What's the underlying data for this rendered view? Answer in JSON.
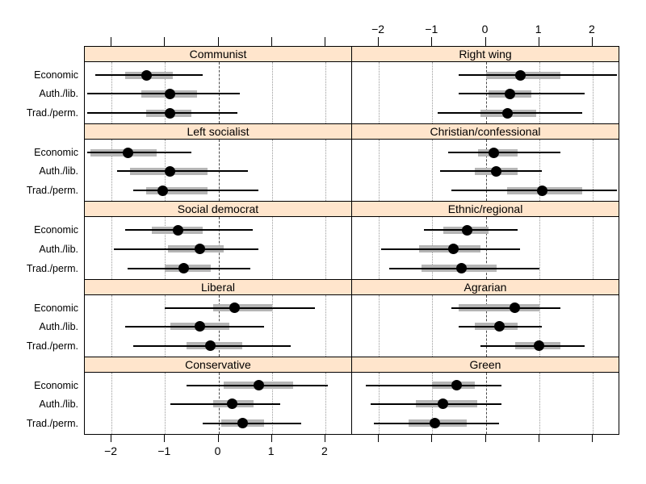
{
  "figure": {
    "background": "#ffffff",
    "strip_fill": "#ffe5cc",
    "inner_bar_color": "#b5b5b5",
    "dot_color": "#000000",
    "zero_line_style": "dashed",
    "gridline_style": "dotted"
  },
  "chart_data": {
    "type": "dotplot",
    "description_visible_elements": "Ten panels of point estimates with thick inner intervals and thin outer intervals, three ideological dimensions per party family, dashed reference line at 0, dotted gridlines at integers",
    "row_labels": [
      "Economic",
      "Auth./lib.",
      "Trad./perm."
    ],
    "x_axis": {
      "range": [
        -2.5,
        2.5
      ],
      "tick_values": [
        -2,
        -1,
        0,
        1,
        2
      ],
      "tick_labels": [
        "−2",
        "−1",
        "0",
        "1",
        "2"
      ],
      "top_labels_shown_over": "right column",
      "bottom_labels_shown_under": "left column",
      "grid": true,
      "reference_line_at": 0
    },
    "panel_layout": [
      [
        "Communist",
        "Right wing"
      ],
      [
        "Left socialist",
        "Christian/confessional"
      ],
      [
        "Social democrat",
        "Ethnic/regional"
      ],
      [
        "Liberal",
        "Agrarian"
      ],
      [
        "Conservative",
        "Green"
      ]
    ],
    "panels": [
      {
        "title": "Communist",
        "col": 0,
        "row": 0,
        "points": [
          {
            "label": "Economic",
            "estimate": -1.35,
            "inner": [
              -1.75,
              -0.85
            ],
            "outer": [
              -2.3,
              -0.3
            ]
          },
          {
            "label": "Auth./lib.",
            "estimate": -0.9,
            "inner": [
              -1.45,
              -0.4
            ],
            "outer": [
              -2.45,
              0.4
            ]
          },
          {
            "label": "Trad./perm.",
            "estimate": -0.9,
            "inner": [
              -1.35,
              -0.5
            ],
            "outer": [
              -2.45,
              0.35
            ]
          }
        ]
      },
      {
        "title": "Right wing",
        "col": 1,
        "row": 0,
        "points": [
          {
            "label": "Economic",
            "estimate": 0.65,
            "inner": [
              0.0,
              1.4
            ],
            "outer": [
              -0.5,
              2.45
            ]
          },
          {
            "label": "Auth./lib.",
            "estimate": 0.45,
            "inner": [
              0.05,
              0.85
            ],
            "outer": [
              -0.5,
              1.85
            ]
          },
          {
            "label": "Trad./perm.",
            "estimate": 0.4,
            "inner": [
              -0.1,
              0.95
            ],
            "outer": [
              -0.9,
              1.8
            ]
          }
        ]
      },
      {
        "title": "Left socialist",
        "col": 0,
        "row": 1,
        "points": [
          {
            "label": "Economic",
            "estimate": -1.7,
            "inner": [
              -2.4,
              -1.15
            ],
            "outer": [
              -2.45,
              -0.5
            ]
          },
          {
            "label": "Auth./lib.",
            "estimate": -0.9,
            "inner": [
              -1.65,
              -0.2
            ],
            "outer": [
              -1.9,
              0.55
            ]
          },
          {
            "label": "Trad./perm.",
            "estimate": -1.05,
            "inner": [
              -1.35,
              -0.2
            ],
            "outer": [
              -1.6,
              0.75
            ]
          }
        ]
      },
      {
        "title": "Christian/confessional",
        "col": 1,
        "row": 1,
        "points": [
          {
            "label": "Economic",
            "estimate": 0.15,
            "inner": [
              -0.15,
              0.6
            ],
            "outer": [
              -0.7,
              1.4
            ]
          },
          {
            "label": "Auth./lib.",
            "estimate": 0.2,
            "inner": [
              -0.2,
              0.6
            ],
            "outer": [
              -0.85,
              1.05
            ]
          },
          {
            "label": "Trad./perm.",
            "estimate": 1.05,
            "inner": [
              0.4,
              1.8
            ],
            "outer": [
              -0.65,
              2.45
            ]
          }
        ]
      },
      {
        "title": "Social democrat",
        "col": 0,
        "row": 2,
        "points": [
          {
            "label": "Economic",
            "estimate": -0.75,
            "inner": [
              -1.25,
              -0.3
            ],
            "outer": [
              -1.75,
              0.65
            ]
          },
          {
            "label": "Auth./lib.",
            "estimate": -0.35,
            "inner": [
              -0.95,
              0.1
            ],
            "outer": [
              -1.95,
              0.75
            ]
          },
          {
            "label": "Trad./perm.",
            "estimate": -0.65,
            "inner": [
              -1.0,
              -0.15
            ],
            "outer": [
              -1.7,
              0.6
            ]
          }
        ]
      },
      {
        "title": "Ethnic/regional",
        "col": 1,
        "row": 2,
        "points": [
          {
            "label": "Economic",
            "estimate": -0.35,
            "inner": [
              -0.8,
              0.05
            ],
            "outer": [
              -1.15,
              0.6
            ]
          },
          {
            "label": "Auth./lib.",
            "estimate": -0.6,
            "inner": [
              -1.25,
              -0.1
            ],
            "outer": [
              -1.95,
              0.65
            ]
          },
          {
            "label": "Trad./perm.",
            "estimate": -0.45,
            "inner": [
              -1.2,
              0.2
            ],
            "outer": [
              -1.8,
              1.0
            ]
          }
        ]
      },
      {
        "title": "Liberal",
        "col": 0,
        "row": 3,
        "points": [
          {
            "label": "Economic",
            "estimate": 0.3,
            "inner": [
              -0.1,
              1.0
            ],
            "outer": [
              -1.0,
              1.8
            ]
          },
          {
            "label": "Auth./lib.",
            "estimate": -0.35,
            "inner": [
              -0.9,
              0.2
            ],
            "outer": [
              -1.75,
              0.85
            ]
          },
          {
            "label": "Trad./perm.",
            "estimate": -0.15,
            "inner": [
              -0.6,
              0.45
            ],
            "outer": [
              -1.6,
              1.35
            ]
          }
        ]
      },
      {
        "title": "Agrarian",
        "col": 1,
        "row": 3,
        "points": [
          {
            "label": "Economic",
            "estimate": 0.55,
            "inner": [
              -0.5,
              1.0
            ],
            "outer": [
              -0.65,
              1.4
            ]
          },
          {
            "label": "Auth./lib.",
            "estimate": 0.25,
            "inner": [
              -0.2,
              0.6
            ],
            "outer": [
              -0.5,
              1.05
            ]
          },
          {
            "label": "Trad./perm.",
            "estimate": 1.0,
            "inner": [
              0.55,
              1.4
            ],
            "outer": [
              -0.1,
              1.85
            ]
          }
        ]
      },
      {
        "title": "Conservative",
        "col": 0,
        "row": 4,
        "points": [
          {
            "label": "Economic",
            "estimate": 0.75,
            "inner": [
              0.1,
              1.4
            ],
            "outer": [
              -0.6,
              2.05
            ]
          },
          {
            "label": "Auth./lib.",
            "estimate": 0.25,
            "inner": [
              -0.1,
              0.65
            ],
            "outer": [
              -0.9,
              1.15
            ]
          },
          {
            "label": "Trad./perm.",
            "estimate": 0.45,
            "inner": [
              0.05,
              0.85
            ],
            "outer": [
              -0.3,
              1.55
            ]
          }
        ]
      },
      {
        "title": "Green",
        "col": 1,
        "row": 4,
        "points": [
          {
            "label": "Economic",
            "estimate": -0.55,
            "inner": [
              -1.0,
              -0.2
            ],
            "outer": [
              -2.25,
              0.3
            ]
          },
          {
            "label": "Auth./lib.",
            "estimate": -0.8,
            "inner": [
              -1.3,
              -0.15
            ],
            "outer": [
              -2.15,
              0.3
            ]
          },
          {
            "label": "Trad./perm.",
            "estimate": -0.95,
            "inner": [
              -1.45,
              -0.35
            ],
            "outer": [
              -2.1,
              0.25
            ]
          }
        ]
      }
    ]
  }
}
